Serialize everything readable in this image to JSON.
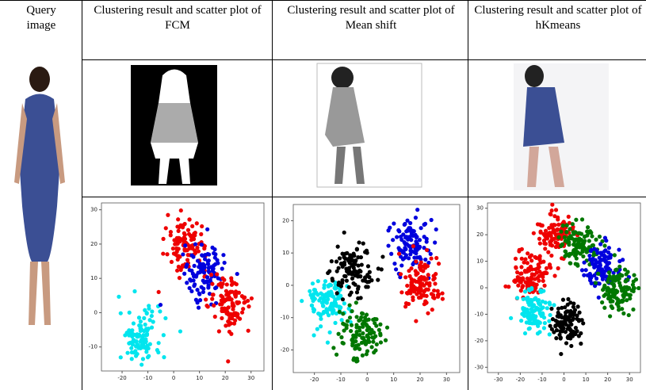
{
  "header": {
    "cells": [
      "Query image",
      "Clustering result and scatter plot of FCM",
      "Clustering result and scatter plot of Mean shift",
      "Clustering result and scatter plot of hKmeans"
    ]
  },
  "plots": [
    {
      "xlim": [
        -28,
        35
      ],
      "ylim": [
        -17,
        32
      ],
      "xticks": [
        -20,
        -10,
        0,
        10,
        20,
        30
      ],
      "yticks": [
        -10,
        0,
        10,
        20,
        30
      ],
      "clusters": [
        {
          "color": "#00e5ee",
          "center": [
            -13,
            -7
          ]
        },
        {
          "color": "#ee0000",
          "center": [
            5,
            20
          ]
        },
        {
          "color": "#0000dd",
          "center": [
            12,
            12
          ]
        },
        {
          "color": "#ee0000",
          "center": [
            22,
            2
          ]
        }
      ]
    },
    {
      "xlim": [
        -28,
        35
      ],
      "ylim": [
        -27,
        25
      ],
      "xticks": [
        -20,
        -10,
        0,
        10,
        20,
        30
      ],
      "yticks": [
        -20,
        -10,
        0,
        10,
        20
      ],
      "clusters": [
        {
          "color": "#00e5ee",
          "center": [
            -15,
            -5
          ]
        },
        {
          "color": "#000000",
          "center": [
            -5,
            5
          ]
        },
        {
          "color": "#007700",
          "center": [
            -3,
            -15
          ]
        },
        {
          "color": "#0000dd",
          "center": [
            17,
            13
          ]
        },
        {
          "color": "#ee0000",
          "center": [
            20,
            0
          ]
        }
      ]
    },
    {
      "xlim": [
        -35,
        35
      ],
      "ylim": [
        -32,
        32
      ],
      "xticks": [
        -30,
        -20,
        -10,
        0,
        10,
        20,
        30
      ],
      "yticks": [
        -30,
        -20,
        -10,
        0,
        10,
        20,
        30
      ],
      "clusters": [
        {
          "color": "#ee0000",
          "center": [
            -15,
            5
          ]
        },
        {
          "color": "#ee0000",
          "center": [
            -4,
            20
          ]
        },
        {
          "color": "#007700",
          "center": [
            7,
            17
          ]
        },
        {
          "color": "#00e5ee",
          "center": [
            -14,
            -9
          ]
        },
        {
          "color": "#000000",
          "center": [
            2,
            -13
          ]
        },
        {
          "color": "#0000dd",
          "center": [
            18,
            8
          ]
        },
        {
          "color": "#007700",
          "center": [
            25,
            -1
          ]
        }
      ]
    }
  ]
}
